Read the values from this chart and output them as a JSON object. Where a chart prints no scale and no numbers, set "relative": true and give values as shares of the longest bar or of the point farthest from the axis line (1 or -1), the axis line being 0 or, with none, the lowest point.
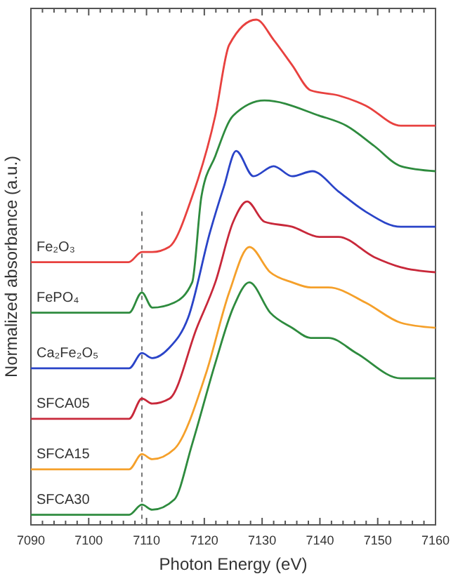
{
  "chart_data": {
    "type": "line",
    "relative": true,
    "xlabel": "Photon Energy (eV)",
    "ylabel": "Normalized absorbance (a.u.)",
    "xlim": [
      7090,
      7160
    ],
    "xticks": [
      7090,
      {
        "value": 7092,
        "label": null
      },
      {
        "value": 7094,
        "label": null
      },
      {
        "value": 7096,
        "label": null
      },
      {
        "value": 7098,
        "label": null
      },
      7100,
      {
        "value": 7102,
        "label": null
      },
      {
        "value": 7104,
        "label": null
      },
      {
        "value": 7106,
        "label": null
      },
      {
        "value": 7108,
        "label": null
      },
      7110,
      {
        "value": 7112,
        "label": null
      },
      {
        "value": 7114,
        "label": null
      },
      {
        "value": 7116,
        "label": null
      },
      {
        "value": 7118,
        "label": null
      },
      7120,
      {
        "value": 7122,
        "label": null
      },
      {
        "value": 7124,
        "label": null
      },
      {
        "value": 7126,
        "label": null
      },
      {
        "value": 7128,
        "label": null
      },
      7130,
      {
        "value": 7132,
        "label": null
      },
      {
        "value": 7134,
        "label": null
      },
      {
        "value": 7136,
        "label": null
      },
      {
        "value": 7138,
        "label": null
      },
      7140,
      {
        "value": 7142,
        "label": null
      },
      {
        "value": 7144,
        "label": null
      },
      {
        "value": 7146,
        "label": null
      },
      {
        "value": 7148,
        "label": null
      },
      7150,
      {
        "value": 7152,
        "label": null
      },
      {
        "value": 7154,
        "label": null
      },
      {
        "value": 7156,
        "label": null
      },
      {
        "value": 7158,
        "label": null
      },
      7160
    ],
    "grid": false,
    "marker": "none",
    "line_style": "solid",
    "ref_lines": [
      {
        "axis": "x",
        "value": 7109.2,
        "color": "#777777",
        "line_style": "dashed"
      }
    ],
    "series": [
      {
        "name": "Fe₂O₃",
        "color": "#e8413f",
        "x": [
          7090,
          7106.9,
          7109.2,
          7111,
          7113.9,
          7117.9,
          7121.9,
          7124.3,
          7129,
          7132,
          7135.2,
          7138.4,
          7143.2,
          7147.9,
          7154,
          7160
        ],
        "values": [
          0.52,
          0.52,
          0.54,
          0.54,
          0.55,
          0.65,
          0.81,
          0.95,
          1,
          0.96,
          0.91,
          0.86,
          0.85,
          0.83,
          0.79,
          0.79
        ]
      },
      {
        "name": "FePO₄",
        "color": "#2e8b3e",
        "x": [
          7090,
          7107,
          7109.2,
          7111,
          7114.8,
          7117.9,
          7119.5,
          7121.9,
          7125,
          7130.4,
          7139.9,
          7144.6,
          7149.4,
          7154,
          7160
        ],
        "values": [
          0.42,
          0.42,
          0.46,
          0.43,
          0.44,
          0.48,
          0.65,
          0.73,
          0.81,
          0.84,
          0.81,
          0.79,
          0.75,
          0.71,
          0.7
        ]
      },
      {
        "name": "Ca₂Fe₂O₅",
        "color": "#2a44c8",
        "x": [
          7090,
          7107,
          7109.2,
          7111,
          7113.9,
          7117.2,
          7121,
          7123.4,
          7125.5,
          7128.5,
          7132,
          7135.2,
          7138.7,
          7143.2,
          7147.9,
          7154,
          7160
        ],
        "values": [
          0.31,
          0.31,
          0.34,
          0.33,
          0.35,
          0.41,
          0.58,
          0.67,
          0.74,
          0.69,
          0.71,
          0.69,
          0.7,
          0.66,
          0.62,
          0.59,
          0.59
        ]
      },
      {
        "name": "SFCA05",
        "color": "#c8283a",
        "x": [
          7090,
          7107,
          7109.2,
          7111,
          7114,
          7118.7,
          7121.9,
          7125,
          7127.4,
          7130.4,
          7135.2,
          7139.9,
          7143.2,
          7149.4,
          7154,
          7160
        ],
        "values": [
          0.21,
          0.21,
          0.25,
          0.24,
          0.25,
          0.39,
          0.48,
          0.6,
          0.64,
          0.6,
          0.59,
          0.57,
          0.57,
          0.53,
          0.51,
          0.5
        ]
      },
      {
        "name": "SFCA15",
        "color": "#f5a02a",
        "x": [
          7090,
          7107,
          7109.2,
          7111,
          7114.8,
          7120.3,
          7124.3,
          7127.8,
          7131.4,
          7135.2,
          7138.4,
          7141.5,
          7147.9,
          7154,
          7160
        ],
        "values": [
          0.11,
          0.11,
          0.14,
          0.13,
          0.15,
          0.3,
          0.46,
          0.55,
          0.5,
          0.48,
          0.47,
          0.47,
          0.44,
          0.4,
          0.39
        ]
      },
      {
        "name": "SFCA30",
        "color": "#2e8b3e",
        "x": [
          7090,
          7107,
          7109.2,
          7111,
          7114.8,
          7117.9,
          7121.9,
          7125,
          7127.8,
          7131.4,
          7135.2,
          7138.4,
          7141.5,
          7146.3,
          7154,
          7160
        ],
        "values": [
          0.02,
          0.02,
          0.04,
          0.03,
          0.05,
          0.16,
          0.32,
          0.43,
          0.48,
          0.42,
          0.39,
          0.37,
          0.37,
          0.34,
          0.29,
          0.29
        ]
      }
    ]
  }
}
